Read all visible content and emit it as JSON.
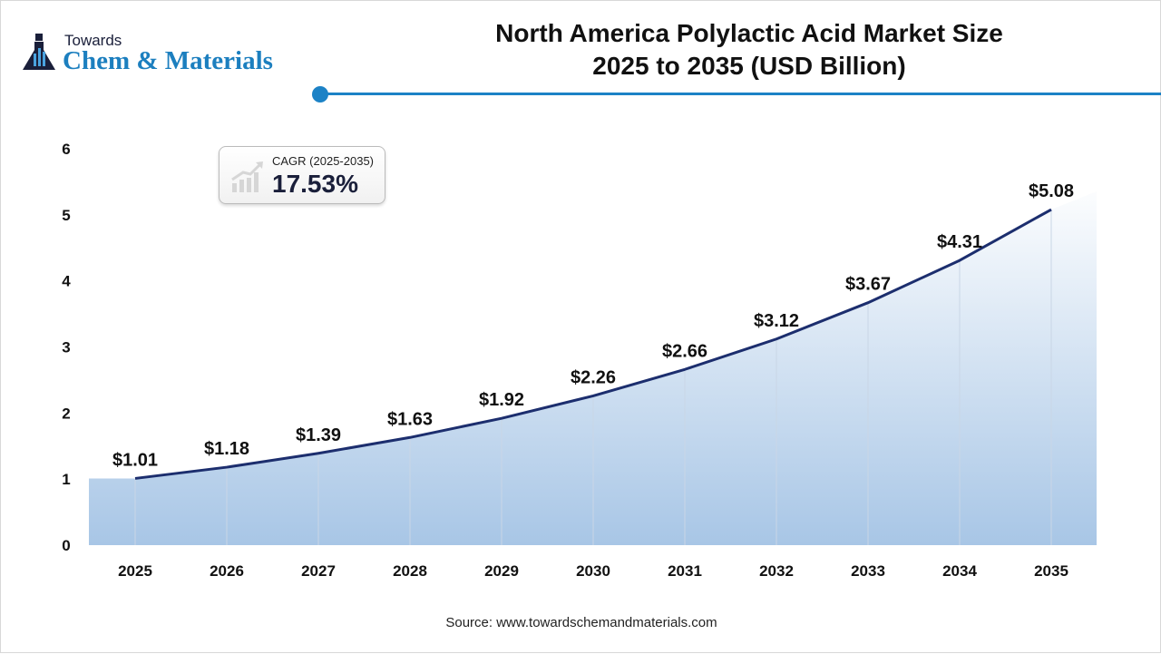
{
  "logo": {
    "line1": "Towards",
    "line2": "Chem & Materials"
  },
  "title_line1": "North America Polylactic Acid Market Size",
  "title_line2": "2025 to 2035 (USD Billion)",
  "cagr": {
    "label": "CAGR (2025-2035)",
    "value": "17.53%",
    "icon": "growth-bar-chart-icon"
  },
  "source": "Source: www.towardschemandmaterials.com",
  "colors": {
    "line": "#1c2e6e",
    "accent": "#1c82c6",
    "area_bottom": "#a8c6e6"
  },
  "chart_data": {
    "type": "area",
    "title": "North America Polylactic Acid Market Size 2025 to 2035 (USD Billion)",
    "x": [
      "2025",
      "2026",
      "2027",
      "2028",
      "2029",
      "2030",
      "2031",
      "2032",
      "2033",
      "2034",
      "2035"
    ],
    "values": [
      1.01,
      1.18,
      1.39,
      1.63,
      1.92,
      2.26,
      2.66,
      3.12,
      3.67,
      4.31,
      5.08
    ],
    "data_labels": [
      "$1.01",
      "$1.18",
      "$1.39",
      "$1.63",
      "$1.92",
      "$2.26",
      "$2.66",
      "$3.12",
      "$3.67",
      "$4.31",
      "$5.08"
    ],
    "yticks": [
      "0",
      "1",
      "2",
      "3",
      "4",
      "5",
      "6"
    ],
    "ylim": [
      0,
      6
    ],
    "grid": false,
    "xlabel": "",
    "ylabel": ""
  }
}
